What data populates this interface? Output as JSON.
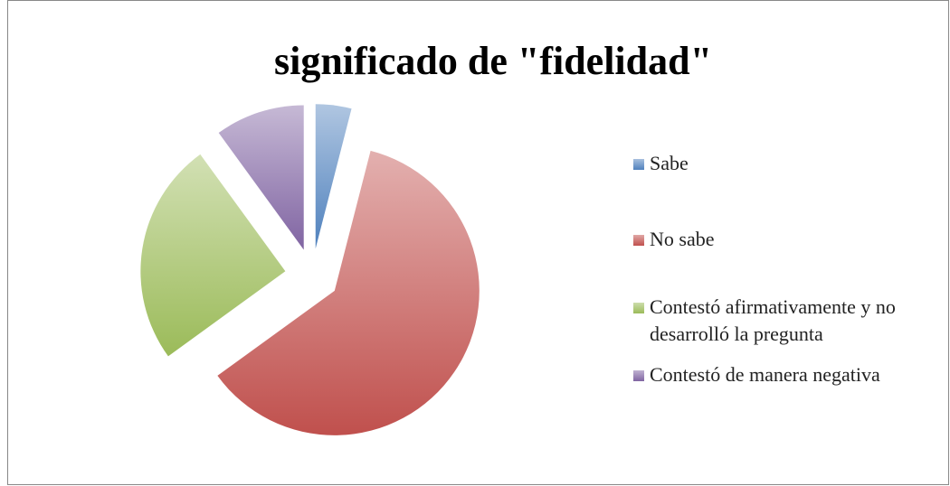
{
  "chart_data": {
    "type": "pie",
    "title": "significado de \"fidelidad\"",
    "categories": [
      "Sabe",
      "No sabe",
      "Contestó afirmativamente y no desarrolló la pregunta",
      "Contestó de manera negativa"
    ],
    "values": [
      4,
      61,
      25,
      10
    ],
    "colors": [
      "#4f81bd",
      "#c0504d",
      "#9bbb59",
      "#8064a2"
    ],
    "exploded": true,
    "legend": "right"
  }
}
